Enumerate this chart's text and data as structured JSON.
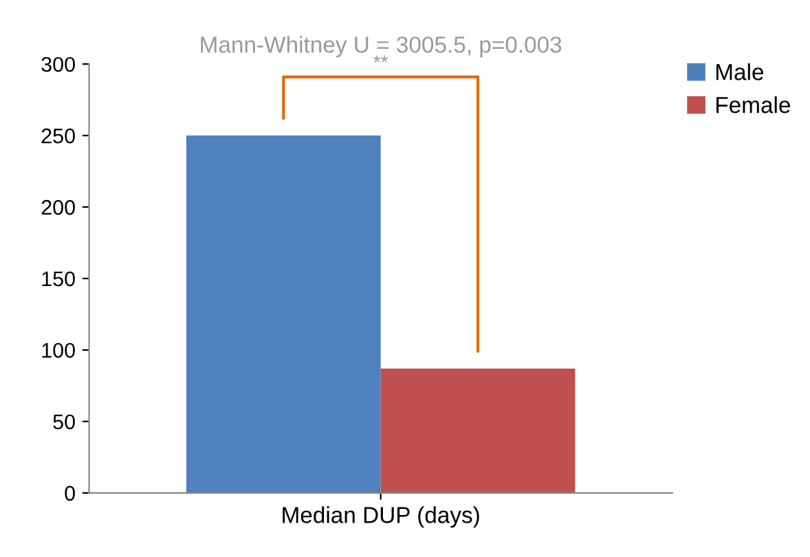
{
  "chart_data": {
    "type": "bar",
    "title": "Mann-Whitney U = 3005.5, p=0.003",
    "categories": [
      "Median DUP (days)"
    ],
    "series": [
      {
        "name": "Male",
        "color": "#4f81bd",
        "values": [
          250
        ]
      },
      {
        "name": "Female",
        "color": "#c0504d",
        "values": [
          87
        ]
      }
    ],
    "ylim": [
      0,
      300
    ],
    "yticks": [
      0,
      50,
      100,
      150,
      200,
      250,
      300
    ],
    "annotations": [
      "**"
    ],
    "grid": false,
    "legend": "top right"
  }
}
